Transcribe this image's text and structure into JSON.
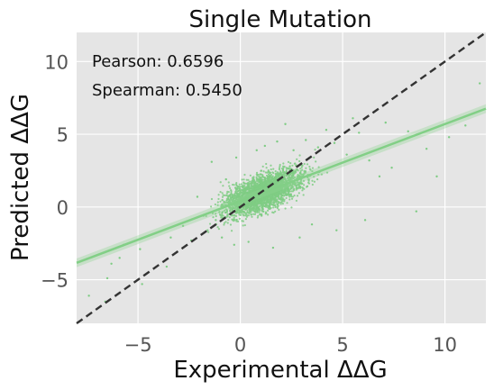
{
  "chart_data": {
    "type": "scatter",
    "title": "Single Mutation",
    "xlabel": "Experimental ΔΔG",
    "ylabel": "Predicted ΔΔG",
    "xlim": [
      -8,
      12
    ],
    "ylim": [
      -8,
      12
    ],
    "xticks": [
      -5,
      0,
      5,
      10
    ],
    "yticks": [
      -5,
      0,
      5,
      10
    ],
    "xtick_labels": [
      "−5",
      "0",
      "5",
      "10"
    ],
    "ytick_labels": [
      "−5",
      "0",
      "5",
      "10"
    ],
    "grid": true,
    "stats": {
      "pearson": "Pearson: 0.6596",
      "spearman": "Spearman: 0.5450"
    },
    "regression_line": {
      "slope": 0.53,
      "intercept": 0.4
    },
    "identity_line": {
      "slope": 1,
      "intercept": 0
    },
    "points": [
      [
        -7.4,
        -6.1
      ],
      [
        -6.5,
        -4.9
      ],
      [
        -6.3,
        -3.9
      ],
      [
        -5.9,
        -3.5
      ],
      [
        -5.7,
        -2.6
      ],
      [
        -6.6,
        -6.5
      ],
      [
        -4.8,
        -5.3
      ],
      [
        -4.9,
        -2.9
      ],
      [
        -3.4,
        -2.1
      ],
      [
        -2.8,
        -1.3
      ],
      [
        -3.6,
        -4.1
      ],
      [
        -2.4,
        -2.3
      ],
      [
        -1.8,
        -0.6
      ],
      [
        -1.6,
        -1.6
      ],
      [
        -2.1,
        0.7
      ],
      [
        -1.2,
        -0.9
      ],
      [
        -0.9,
        -2.1
      ],
      [
        -0.7,
        1.9
      ],
      [
        -0.3,
        -2.6
      ],
      [
        0.4,
        -2.4
      ],
      [
        1.2,
        4.2
      ],
      [
        1.8,
        4.5
      ],
      [
        2.6,
        3.9
      ],
      [
        3.2,
        4.6
      ],
      [
        3.8,
        4.1
      ],
      [
        4.6,
        4.4
      ],
      [
        5.2,
        3.6
      ],
      [
        5.8,
        5.1
      ],
      [
        6.3,
        3.2
      ],
      [
        6.8,
        2.1
      ],
      [
        7.4,
        2.7
      ],
      [
        8.2,
        5.2
      ],
      [
        9.1,
        4.0
      ],
      [
        10.2,
        4.8
      ],
      [
        11.0,
        5.6
      ],
      [
        11.7,
        8.5
      ],
      [
        9.6,
        2.1
      ],
      [
        8.6,
        -0.3
      ],
      [
        6.1,
        -0.9
      ],
      [
        4.7,
        -1.6
      ],
      [
        3.5,
        -1.2
      ],
      [
        2.9,
        -2.1
      ],
      [
        1.6,
        -2.8
      ],
      [
        5.5,
        6.1
      ],
      [
        2.2,
        5.7
      ],
      [
        -1.4,
        3.1
      ],
      [
        -0.2,
        3.4
      ],
      [
        0.8,
        3.9
      ],
      [
        7.1,
        5.8
      ],
      [
        4.2,
        5.3
      ]
    ]
  }
}
